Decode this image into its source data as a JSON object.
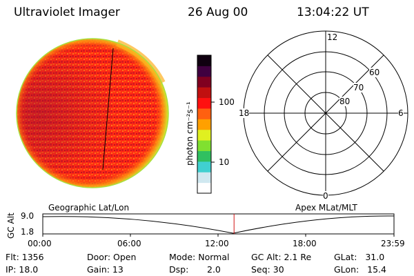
{
  "header": {
    "title": "Ultraviolet Imager",
    "date": "26 Aug 00",
    "time": "13:04:22 UT"
  },
  "colorbar": {
    "unit_label": "photon cm⁻²s⁻¹",
    "ticks": [
      "100",
      "10"
    ],
    "colors": [
      "#ffffff",
      "#d0e8f0",
      "#40d0d0",
      "#30c060",
      "#80e030",
      "#e0f020",
      "#ffa000",
      "#ff6010",
      "#ff1010",
      "#c01010",
      "#800020",
      "#400040",
      "#100010"
    ]
  },
  "polar": {
    "mlt_labels": {
      "top": "12",
      "bottom": "0",
      "left": "18",
      "right": "6"
    },
    "lat_labels": [
      "60",
      "70",
      "80"
    ]
  },
  "timeline": {
    "left_label": "Geographic Lat/Lon",
    "right_label": "Apex MLat/MLT",
    "y_axis_label": "GC Alt",
    "y_ticks": [
      "9.0",
      "1.8"
    ],
    "x_ticks": [
      "00:00",
      "06:00",
      "12:00",
      "18:00",
      "23:59"
    ],
    "current_time_fraction": 0.5446
  },
  "status": {
    "flt": "Flt: 1356",
    "ip": "IP: 18.0",
    "door": "Door: Open",
    "gain": "Gain: 13",
    "mode": "Mode: Normal",
    "dsp_label": "Dsp:",
    "dsp_value": "2.0",
    "gc_alt": "GC Alt: 2.1 Re",
    "seq": "Seq: 30",
    "glat": "GLat:   31.0",
    "glon": "GLon:   15.4"
  }
}
